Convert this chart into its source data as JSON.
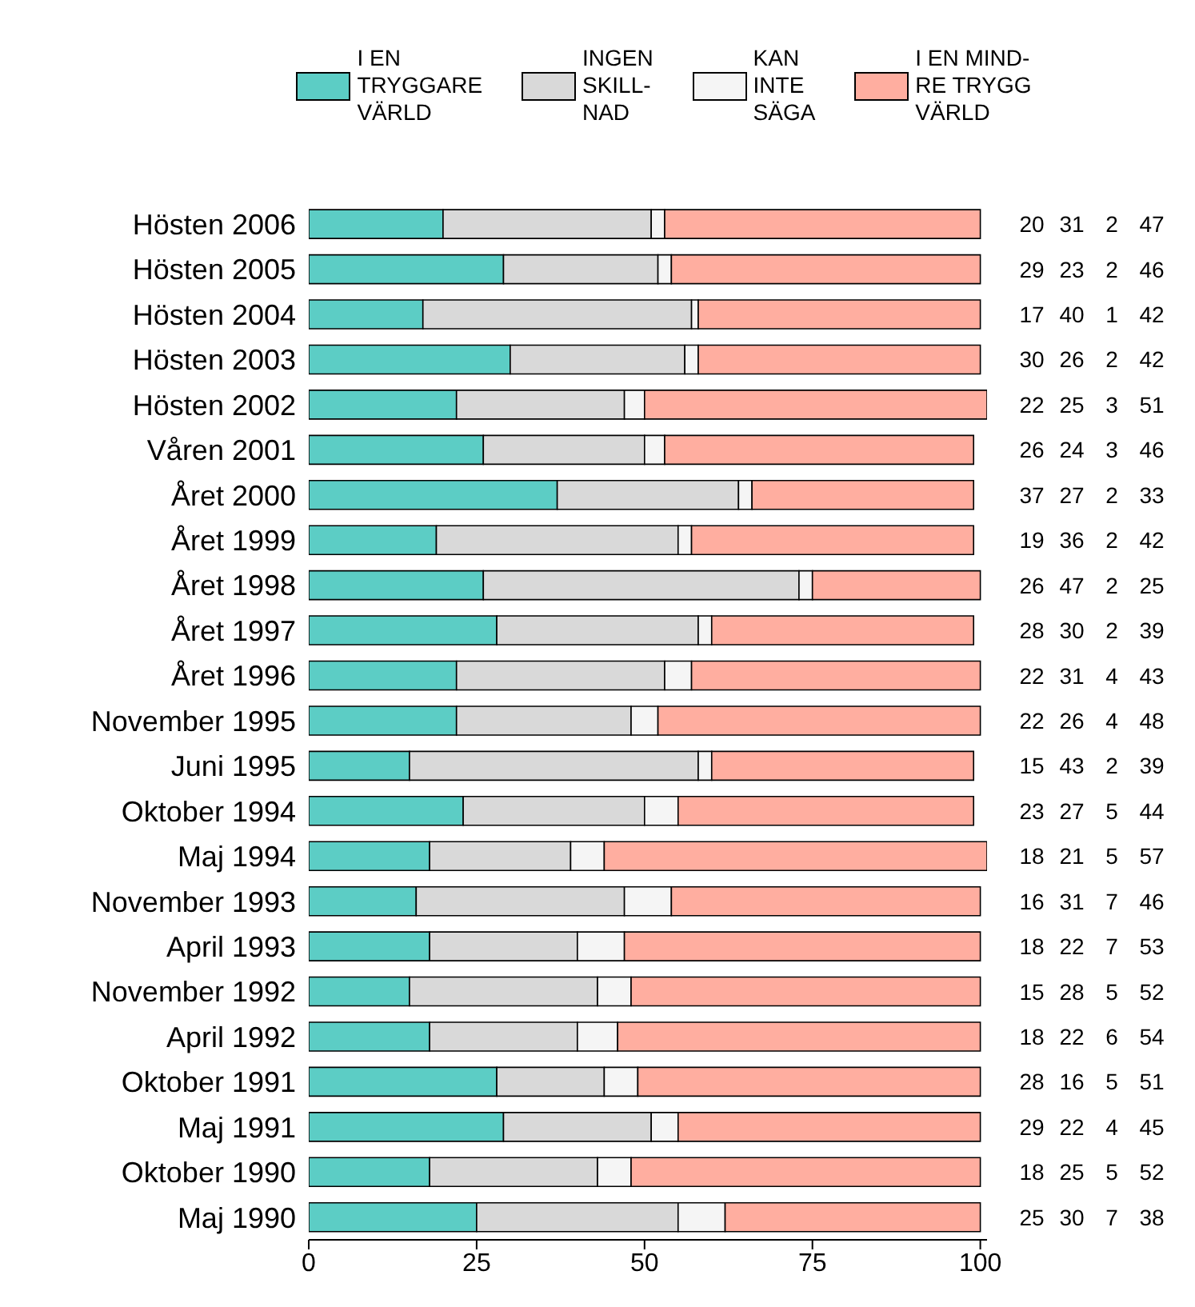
{
  "chart_data": {
    "type": "bar",
    "orientation": "horizontal",
    "stacked": true,
    "categories": [
      "Hösten 2006",
      "Hösten 2005",
      "Hösten 2004",
      "Hösten 2003",
      "Hösten 2002",
      "Våren 2001",
      "Året 2000",
      "Året 1999",
      "Året 1998",
      "Året 1997",
      "Året 1996",
      "November 1995",
      "Juni 1995",
      "Oktober 1994",
      "Maj 1994",
      "November 1993",
      "April 1993",
      "November 1992",
      "April 1992",
      "Oktober 1991",
      "Maj 1991",
      "Oktober 1990",
      "Maj 1990"
    ],
    "series": [
      {
        "name": "I EN\nTRYGGARE\nVÄRLD",
        "color": "#5ccdc5",
        "values": [
          20,
          29,
          17,
          30,
          22,
          26,
          37,
          19,
          26,
          28,
          22,
          22,
          15,
          23,
          18,
          16,
          18,
          15,
          18,
          28,
          29,
          18,
          25
        ]
      },
      {
        "name": "INGEN\nSKILL-\nNAD",
        "color": "#d9d9d9",
        "values": [
          31,
          23,
          40,
          26,
          25,
          24,
          27,
          36,
          47,
          30,
          31,
          26,
          43,
          27,
          21,
          31,
          22,
          28,
          22,
          16,
          22,
          25,
          30
        ]
      },
      {
        "name": "KAN\nINTE\nSÄGA",
        "color": "#f5f5f5",
        "values": [
          2,
          2,
          1,
          2,
          3,
          3,
          2,
          2,
          2,
          2,
          4,
          4,
          2,
          5,
          5,
          7,
          7,
          5,
          6,
          5,
          4,
          5,
          7
        ]
      },
      {
        "name": "I EN MIND-\nRE TRYGG\nVÄRLD",
        "color": "#ffaea0",
        "values": [
          47,
          46,
          42,
          42,
          51,
          46,
          33,
          42,
          25,
          39,
          43,
          48,
          39,
          44,
          57,
          46,
          53,
          52,
          54,
          51,
          45,
          52,
          38
        ]
      }
    ],
    "xlim": [
      0,
      101
    ],
    "xticks": [
      0,
      25,
      50,
      75,
      100
    ],
    "grid": false,
    "legend": "top",
    "data_labels": true
  }
}
